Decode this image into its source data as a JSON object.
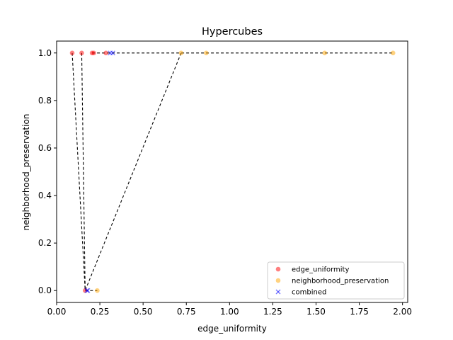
{
  "chart_data": {
    "type": "scatter",
    "title": "Hypercubes",
    "xlabel": "edge_uniformity",
    "ylabel": "neighborhood_preservation",
    "xlim": [
      0.0,
      2.03
    ],
    "ylim": [
      -0.05,
      1.05
    ],
    "xticks": [
      "0.00",
      "0.25",
      "0.50",
      "0.75",
      "1.00",
      "1.25",
      "1.50",
      "1.75",
      "2.00"
    ],
    "yticks": [
      "0.0",
      "0.2",
      "0.4",
      "0.6",
      "0.8",
      "1.0"
    ],
    "grid": false,
    "legend_position": "lower-right",
    "series": [
      {
        "name": "edge_uniformity",
        "marker": "circle",
        "color": "#ff0000",
        "points": [
          [
            0.09,
            1.0
          ],
          [
            0.145,
            1.0
          ],
          [
            0.205,
            1.0
          ],
          [
            0.215,
            1.0
          ],
          [
            0.285,
            1.0
          ],
          [
            0.165,
            0.0
          ]
        ]
      },
      {
        "name": "neighborhood_preservation",
        "marker": "circle",
        "color": "#ffa500",
        "points": [
          [
            0.72,
            1.0
          ],
          [
            0.865,
            1.0
          ],
          [
            1.55,
            1.0
          ],
          [
            1.945,
            1.0
          ],
          [
            0.235,
            0.0
          ]
        ]
      },
      {
        "name": "combined",
        "marker": "x",
        "color": "#0000ff",
        "points": [
          [
            0.31,
            1.0
          ],
          [
            0.325,
            1.0
          ],
          [
            0.175,
            0.0
          ],
          [
            0.18,
            0.0
          ]
        ]
      }
    ],
    "pareto_lines": [
      [
        [
          0.09,
          1.0
        ],
        [
          0.165,
          0.0
        ]
      ],
      [
        [
          0.145,
          1.0
        ],
        [
          0.165,
          0.0
        ]
      ],
      [
        [
          0.205,
          1.0
        ],
        [
          1.945,
          1.0
        ]
      ],
      [
        [
          0.72,
          1.0
        ],
        [
          0.165,
          0.0
        ]
      ],
      [
        [
          0.165,
          0.0
        ],
        [
          0.235,
          0.0
        ]
      ]
    ]
  }
}
